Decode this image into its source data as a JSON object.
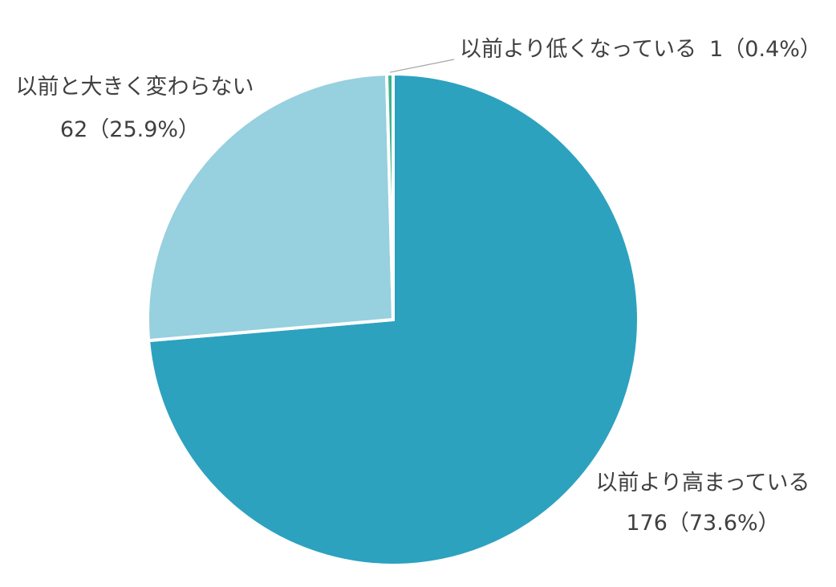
{
  "chart_data": {
    "type": "pie",
    "title": "",
    "start_angle_deg": 0,
    "direction": "clockwise",
    "legend": "none",
    "slices": [
      {
        "label": "以前より高まっている",
        "value": 176,
        "value_text": "176（73.6%）",
        "percent": 73.6,
        "color": "#2ca2bf"
      },
      {
        "label": "以前と大きく変わらない",
        "value": 62,
        "value_text": "62（25.9%）",
        "percent": 25.9,
        "color": "#97d0de"
      },
      {
        "label": "以前より低くなっている",
        "value": 1,
        "value_text": "1（0.4%）",
        "percent": 0.4,
        "color": "#3db38f"
      }
    ]
  }
}
